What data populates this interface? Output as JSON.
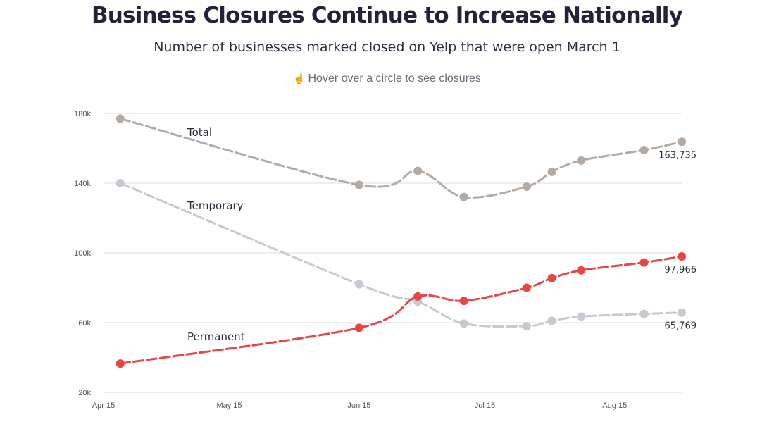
{
  "header": {
    "title": "Business Closures Continue to Increase Nationally",
    "subtitle": "Number of businesses marked closed on Yelp that were open March 1",
    "hint_icon": "pointing-hand-icon",
    "hint": "Hover over a circle to see closures"
  },
  "chart_data": {
    "type": "line",
    "x_axis": {
      "type": "date",
      "range": [
        "2020-04-15",
        "2020-08-31"
      ],
      "ticks": [
        {
          "date": "2020-04-15",
          "label": "Apr 15"
        },
        {
          "date": "2020-05-15",
          "label": "May 15"
        },
        {
          "date": "2020-06-15",
          "label": "Jun 15"
        },
        {
          "date": "2020-07-15",
          "label": "Jul 15"
        },
        {
          "date": "2020-08-15",
          "label": "Aug 15"
        }
      ]
    },
    "y_axis": {
      "range": [
        20000,
        180000
      ],
      "ticks": [
        {
          "value": 20000,
          "label": "20k"
        },
        {
          "value": 60000,
          "label": "60k"
        },
        {
          "value": 100000,
          "label": "100k"
        },
        {
          "value": 140000,
          "label": "140k"
        },
        {
          "value": 180000,
          "label": "180k"
        }
      ],
      "grid": true
    },
    "legend": "inline labels",
    "series": [
      {
        "name": "Total",
        "color": "#b3aaa4",
        "end_label": "163,735",
        "points": [
          {
            "x": "2020-04-19",
            "y": 177000
          },
          {
            "x": "2020-06-15",
            "y": 139000
          },
          {
            "x": "2020-06-29",
            "y": 147000
          },
          {
            "x": "2020-07-10",
            "y": 132000
          },
          {
            "x": "2020-07-25",
            "y": 138000
          },
          {
            "x": "2020-07-31",
            "y": 146500
          },
          {
            "x": "2020-08-07",
            "y": 153000
          },
          {
            "x": "2020-08-22",
            "y": 159000
          },
          {
            "x": "2020-08-31",
            "y": 163735
          }
        ]
      },
      {
        "name": "Temporary",
        "color": "#c8c8d0",
        "end_label": "65,769",
        "points": [
          {
            "x": "2020-04-19",
            "y": 140000
          },
          {
            "x": "2020-06-15",
            "y": 82000
          },
          {
            "x": "2020-06-29",
            "y": 72000
          },
          {
            "x": "2020-07-10",
            "y": 59500
          },
          {
            "x": "2020-07-25",
            "y": 58000
          },
          {
            "x": "2020-07-31",
            "y": 61000
          },
          {
            "x": "2020-08-07",
            "y": 63500
          },
          {
            "x": "2020-08-22",
            "y": 65000
          },
          {
            "x": "2020-08-31",
            "y": 65769
          }
        ]
      },
      {
        "name": "Permanent",
        "color": "#e84646",
        "end_label": "97,966",
        "points": [
          {
            "x": "2020-04-19",
            "y": 36500
          },
          {
            "x": "2020-06-15",
            "y": 57000
          },
          {
            "x": "2020-06-29",
            "y": 75000
          },
          {
            "x": "2020-07-10",
            "y": 72500
          },
          {
            "x": "2020-07-25",
            "y": 80000
          },
          {
            "x": "2020-07-31",
            "y": 85500
          },
          {
            "x": "2020-08-07",
            "y": 90000
          },
          {
            "x": "2020-08-22",
            "y": 94500
          },
          {
            "x": "2020-08-31",
            "y": 97966
          }
        ]
      }
    ]
  }
}
